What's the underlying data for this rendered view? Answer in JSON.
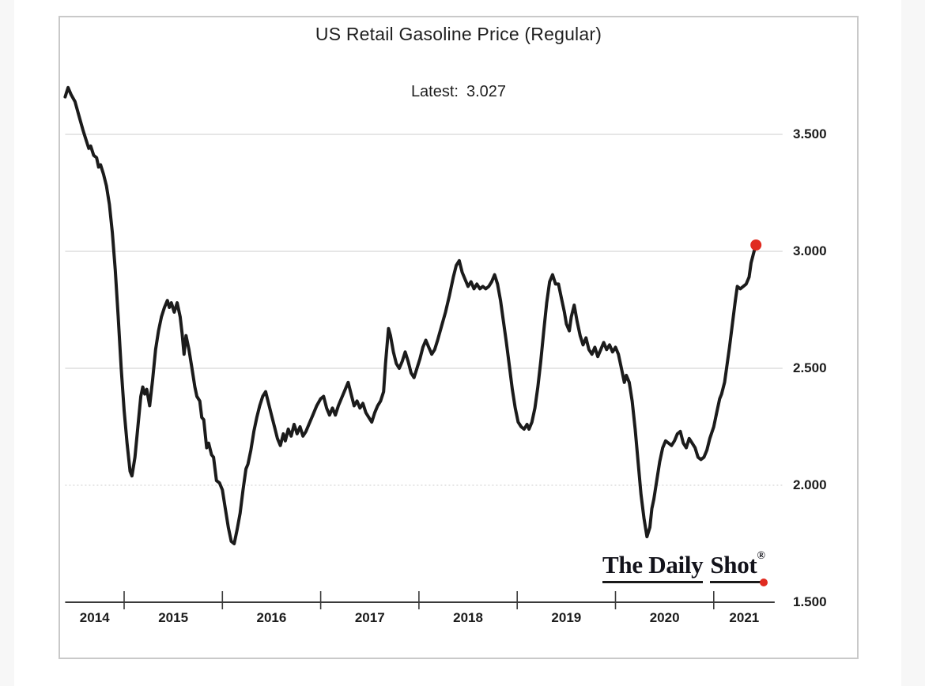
{
  "page": {
    "background": "#ffffff",
    "gutter_color": "#f7f7f7",
    "card_border_color": "#c9c9c9",
    "card_background": "#ffffff"
  },
  "header": {
    "title": "US Retail Gasoline Price (Regular)",
    "latest_label": "Latest:",
    "latest_value": "3.027"
  },
  "branding": {
    "name_part1": "The Daily",
    "name_part2": "Shot",
    "registered_mark": "®",
    "text_color": "#13131b",
    "underline_color": "#1a1a1a",
    "dot_color": "#e02b20"
  },
  "chart_data": {
    "type": "line",
    "title": "US Retail Gasoline Price (Regular)",
    "annotation": "Latest: 3.027",
    "latest_value": 3.027,
    "xlabel": "",
    "ylabel": "",
    "x_domain": [
      2014.4,
      2021.7
    ],
    "axis_end_year": 2021.62,
    "y_domain": [
      1.5,
      3.7
    ],
    "grid_on": true,
    "legend": "none",
    "line_color": "#1b1b1b",
    "dot_color": "#e02b20",
    "grid_color": "#d8d8d8",
    "axis_color": "#3a3a3a",
    "y_ticks": [
      {
        "value": 3.5,
        "label": "3.500",
        "style": "solid"
      },
      {
        "value": 3.0,
        "label": "3.000",
        "style": "solid"
      },
      {
        "value": 2.5,
        "label": "2.500",
        "style": "solid"
      },
      {
        "value": 2.0,
        "label": "2.000",
        "style": "dotted"
      },
      {
        "value": 1.5,
        "label": "1.500",
        "style": "axis"
      }
    ],
    "x_tick_years": [
      2015,
      2016,
      2017,
      2018,
      2019,
      2020,
      2021
    ],
    "x_labels": [
      {
        "label": "2014",
        "center": 2014.7
      },
      {
        "label": "2015",
        "center": 2015.5
      },
      {
        "label": "2016",
        "center": 2016.5
      },
      {
        "label": "2017",
        "center": 2017.5
      },
      {
        "label": "2018",
        "center": 2018.5
      },
      {
        "label": "2019",
        "center": 2019.5
      },
      {
        "label": "2020",
        "center": 2020.5
      },
      {
        "label": "2021",
        "center": 2021.31
      }
    ],
    "series": [
      {
        "name": "US retail gasoline price, regular (USD/gal)",
        "points": [
          [
            2014.4,
            3.66
          ],
          [
            2014.43,
            3.7
          ],
          [
            2014.46,
            3.67
          ],
          [
            2014.5,
            3.64
          ],
          [
            2014.54,
            3.58
          ],
          [
            2014.58,
            3.52
          ],
          [
            2014.61,
            3.48
          ],
          [
            2014.64,
            3.44
          ],
          [
            2014.66,
            3.45
          ],
          [
            2014.69,
            3.41
          ],
          [
            2014.72,
            3.4
          ],
          [
            2014.74,
            3.36
          ],
          [
            2014.76,
            3.37
          ],
          [
            2014.79,
            3.33
          ],
          [
            2014.82,
            3.28
          ],
          [
            2014.85,
            3.2
          ],
          [
            2014.88,
            3.08
          ],
          [
            2014.91,
            2.92
          ],
          [
            2014.94,
            2.72
          ],
          [
            2014.97,
            2.5
          ],
          [
            2015.0,
            2.32
          ],
          [
            2015.03,
            2.18
          ],
          [
            2015.06,
            2.06
          ],
          [
            2015.08,
            2.04
          ],
          [
            2015.11,
            2.12
          ],
          [
            2015.14,
            2.25
          ],
          [
            2015.17,
            2.38
          ],
          [
            2015.19,
            2.42
          ],
          [
            2015.21,
            2.39
          ],
          [
            2015.23,
            2.41
          ],
          [
            2015.26,
            2.34
          ],
          [
            2015.29,
            2.45
          ],
          [
            2015.32,
            2.58
          ],
          [
            2015.35,
            2.66
          ],
          [
            2015.38,
            2.72
          ],
          [
            2015.41,
            2.76
          ],
          [
            2015.44,
            2.79
          ],
          [
            2015.46,
            2.76
          ],
          [
            2015.48,
            2.78
          ],
          [
            2015.51,
            2.74
          ],
          [
            2015.54,
            2.78
          ],
          [
            2015.57,
            2.72
          ],
          [
            2015.59,
            2.65
          ],
          [
            2015.61,
            2.56
          ],
          [
            2015.63,
            2.64
          ],
          [
            2015.66,
            2.58
          ],
          [
            2015.69,
            2.5
          ],
          [
            2015.72,
            2.42
          ],
          [
            2015.74,
            2.38
          ],
          [
            2015.77,
            2.36
          ],
          [
            2015.79,
            2.29
          ],
          [
            2015.81,
            2.28
          ],
          [
            2015.84,
            2.16
          ],
          [
            2015.86,
            2.18
          ],
          [
            2015.89,
            2.13
          ],
          [
            2015.91,
            2.12
          ],
          [
            2015.94,
            2.02
          ],
          [
            2015.97,
            2.01
          ],
          [
            2016.0,
            1.98
          ],
          [
            2016.03,
            1.9
          ],
          [
            2016.06,
            1.82
          ],
          [
            2016.09,
            1.76
          ],
          [
            2016.12,
            1.75
          ],
          [
            2016.15,
            1.81
          ],
          [
            2016.18,
            1.88
          ],
          [
            2016.21,
            1.98
          ],
          [
            2016.24,
            2.07
          ],
          [
            2016.26,
            2.09
          ],
          [
            2016.29,
            2.15
          ],
          [
            2016.32,
            2.23
          ],
          [
            2016.35,
            2.29
          ],
          [
            2016.38,
            2.34
          ],
          [
            2016.41,
            2.38
          ],
          [
            2016.44,
            2.4
          ],
          [
            2016.47,
            2.35
          ],
          [
            2016.5,
            2.3
          ],
          [
            2016.53,
            2.25
          ],
          [
            2016.56,
            2.2
          ],
          [
            2016.59,
            2.17
          ],
          [
            2016.62,
            2.22
          ],
          [
            2016.64,
            2.19
          ],
          [
            2016.67,
            2.24
          ],
          [
            2016.7,
            2.21
          ],
          [
            2016.73,
            2.26
          ],
          [
            2016.76,
            2.22
          ],
          [
            2016.79,
            2.25
          ],
          [
            2016.82,
            2.21
          ],
          [
            2016.85,
            2.23
          ],
          [
            2016.88,
            2.26
          ],
          [
            2016.92,
            2.3
          ],
          [
            2016.96,
            2.34
          ],
          [
            2017.0,
            2.37
          ],
          [
            2017.03,
            2.38
          ],
          [
            2017.06,
            2.33
          ],
          [
            2017.09,
            2.3
          ],
          [
            2017.12,
            2.33
          ],
          [
            2017.15,
            2.3
          ],
          [
            2017.18,
            2.34
          ],
          [
            2017.21,
            2.37
          ],
          [
            2017.25,
            2.41
          ],
          [
            2017.28,
            2.44
          ],
          [
            2017.31,
            2.39
          ],
          [
            2017.34,
            2.34
          ],
          [
            2017.37,
            2.36
          ],
          [
            2017.4,
            2.33
          ],
          [
            2017.43,
            2.35
          ],
          [
            2017.46,
            2.31
          ],
          [
            2017.49,
            2.29
          ],
          [
            2017.52,
            2.27
          ],
          [
            2017.55,
            2.31
          ],
          [
            2017.58,
            2.34
          ],
          [
            2017.61,
            2.36
          ],
          [
            2017.64,
            2.4
          ],
          [
            2017.66,
            2.52
          ],
          [
            2017.69,
            2.67
          ],
          [
            2017.71,
            2.64
          ],
          [
            2017.74,
            2.57
          ],
          [
            2017.77,
            2.52
          ],
          [
            2017.8,
            2.5
          ],
          [
            2017.83,
            2.53
          ],
          [
            2017.86,
            2.57
          ],
          [
            2017.89,
            2.53
          ],
          [
            2017.92,
            2.48
          ],
          [
            2017.95,
            2.46
          ],
          [
            2017.98,
            2.5
          ],
          [
            2018.01,
            2.54
          ],
          [
            2018.04,
            2.59
          ],
          [
            2018.07,
            2.62
          ],
          [
            2018.1,
            2.59
          ],
          [
            2018.13,
            2.56
          ],
          [
            2018.16,
            2.58
          ],
          [
            2018.19,
            2.62
          ],
          [
            2018.23,
            2.68
          ],
          [
            2018.27,
            2.74
          ],
          [
            2018.31,
            2.81
          ],
          [
            2018.35,
            2.89
          ],
          [
            2018.38,
            2.94
          ],
          [
            2018.41,
            2.96
          ],
          [
            2018.44,
            2.91
          ],
          [
            2018.47,
            2.88
          ],
          [
            2018.5,
            2.85
          ],
          [
            2018.53,
            2.87
          ],
          [
            2018.56,
            2.84
          ],
          [
            2018.59,
            2.86
          ],
          [
            2018.62,
            2.84
          ],
          [
            2018.65,
            2.85
          ],
          [
            2018.68,
            2.84
          ],
          [
            2018.71,
            2.85
          ],
          [
            2018.74,
            2.87
          ],
          [
            2018.77,
            2.9
          ],
          [
            2018.8,
            2.86
          ],
          [
            2018.83,
            2.79
          ],
          [
            2018.86,
            2.7
          ],
          [
            2018.89,
            2.61
          ],
          [
            2018.92,
            2.51
          ],
          [
            2018.95,
            2.41
          ],
          [
            2018.98,
            2.33
          ],
          [
            2019.01,
            2.27
          ],
          [
            2019.04,
            2.25
          ],
          [
            2019.07,
            2.24
          ],
          [
            2019.1,
            2.26
          ],
          [
            2019.12,
            2.24
          ],
          [
            2019.15,
            2.27
          ],
          [
            2019.18,
            2.33
          ],
          [
            2019.21,
            2.42
          ],
          [
            2019.24,
            2.53
          ],
          [
            2019.27,
            2.66
          ],
          [
            2019.3,
            2.78
          ],
          [
            2019.33,
            2.87
          ],
          [
            2019.36,
            2.9
          ],
          [
            2019.39,
            2.86
          ],
          [
            2019.42,
            2.86
          ],
          [
            2019.45,
            2.8
          ],
          [
            2019.48,
            2.74
          ],
          [
            2019.5,
            2.69
          ],
          [
            2019.53,
            2.66
          ],
          [
            2019.55,
            2.72
          ],
          [
            2019.58,
            2.77
          ],
          [
            2019.61,
            2.7
          ],
          [
            2019.64,
            2.64
          ],
          [
            2019.67,
            2.6
          ],
          [
            2019.7,
            2.63
          ],
          [
            2019.73,
            2.58
          ],
          [
            2019.76,
            2.56
          ],
          [
            2019.79,
            2.59
          ],
          [
            2019.82,
            2.55
          ],
          [
            2019.85,
            2.58
          ],
          [
            2019.88,
            2.61
          ],
          [
            2019.91,
            2.58
          ],
          [
            2019.94,
            2.6
          ],
          [
            2019.97,
            2.57
          ],
          [
            2020.0,
            2.59
          ],
          [
            2020.03,
            2.56
          ],
          [
            2020.06,
            2.5
          ],
          [
            2020.09,
            2.44
          ],
          [
            2020.11,
            2.47
          ],
          [
            2020.14,
            2.44
          ],
          [
            2020.17,
            2.36
          ],
          [
            2020.2,
            2.24
          ],
          [
            2020.23,
            2.1
          ],
          [
            2020.26,
            1.96
          ],
          [
            2020.29,
            1.86
          ],
          [
            2020.32,
            1.78
          ],
          [
            2020.35,
            1.82
          ],
          [
            2020.37,
            1.9
          ],
          [
            2020.39,
            1.94
          ],
          [
            2020.42,
            2.02
          ],
          [
            2020.45,
            2.1
          ],
          [
            2020.48,
            2.16
          ],
          [
            2020.51,
            2.19
          ],
          [
            2020.54,
            2.18
          ],
          [
            2020.57,
            2.17
          ],
          [
            2020.6,
            2.19
          ],
          [
            2020.63,
            2.22
          ],
          [
            2020.66,
            2.23
          ],
          [
            2020.69,
            2.18
          ],
          [
            2020.72,
            2.16
          ],
          [
            2020.75,
            2.2
          ],
          [
            2020.78,
            2.18
          ],
          [
            2020.81,
            2.16
          ],
          [
            2020.84,
            2.12
          ],
          [
            2020.87,
            2.11
          ],
          [
            2020.9,
            2.12
          ],
          [
            2020.93,
            2.15
          ],
          [
            2020.96,
            2.2
          ],
          [
            2021.0,
            2.25
          ],
          [
            2021.03,
            2.31
          ],
          [
            2021.06,
            2.37
          ],
          [
            2021.08,
            2.39
          ],
          [
            2021.11,
            2.44
          ],
          [
            2021.13,
            2.5
          ],
          [
            2021.16,
            2.59
          ],
          [
            2021.19,
            2.69
          ],
          [
            2021.22,
            2.79
          ],
          [
            2021.24,
            2.85
          ],
          [
            2021.27,
            2.84
          ],
          [
            2021.3,
            2.85
          ],
          [
            2021.33,
            2.86
          ],
          [
            2021.36,
            2.89
          ],
          [
            2021.38,
            2.95
          ],
          [
            2021.41,
            3.0
          ],
          [
            2021.43,
            3.027
          ]
        ]
      }
    ]
  }
}
